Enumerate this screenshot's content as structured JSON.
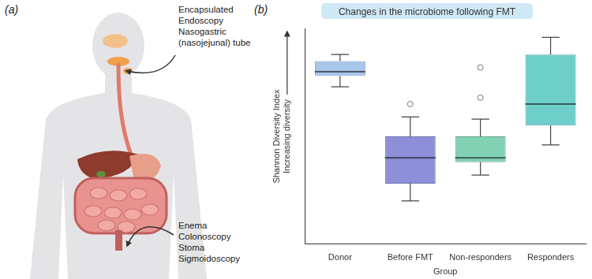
{
  "panel_a": {
    "label": "(a)",
    "upper_routes": [
      "Encapsulated",
      "Endoscopy",
      "Nasogastric",
      "(nasojejunal) tube"
    ],
    "lower_routes": [
      "Enema",
      "Colonoscopy",
      "Stoma",
      "Sigmoidoscopy"
    ]
  },
  "chart_data": {
    "type": "box",
    "panel_label": "(b)",
    "title": "Changes in the microbiome following FMT",
    "xlabel": "Group",
    "ylabel": [
      "Shannon Diversity Index",
      "Increasing diversity"
    ],
    "categories": [
      "Donor",
      "Before FMT",
      "Non-responders",
      "Responders"
    ],
    "boxes": [
      {
        "whisker_low": 7.3,
        "q1": 7.8,
        "median": 8.0,
        "q3": 8.5,
        "whisker_high": 8.8,
        "outliers": []
      },
      {
        "whisker_low": 2.0,
        "q1": 2.8,
        "median": 4.0,
        "q3": 5.0,
        "whisker_high": 5.9,
        "outliers": [
          6.5
        ]
      },
      {
        "whisker_low": 3.2,
        "q1": 3.8,
        "median": 4.0,
        "q3": 5.0,
        "whisker_high": 5.8,
        "outliers": [
          6.8,
          8.2
        ]
      },
      {
        "whisker_low": 4.6,
        "q1": 5.5,
        "median": 6.5,
        "q3": 8.8,
        "whisker_high": 9.6,
        "outliers": []
      }
    ],
    "colors": [
      "#a8c6ea",
      "#8d8fd8",
      "#82d1b4",
      "#6ecfc9"
    ],
    "ylim": [
      0,
      10
    ],
    "grid": false,
    "tick_labels": "x"
  }
}
